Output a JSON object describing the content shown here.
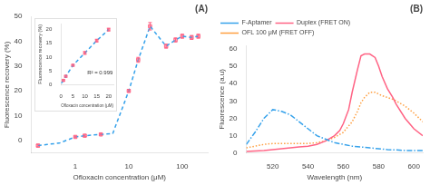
{
  "chart_data": [
    {
      "type": "line",
      "title": "(A)",
      "xlabel": "Ofloxacin concentration (μM)",
      "ylabel": "Fluorescence recovery (%)",
      "log": "x",
      "xlim": [
        0.15,
        300
      ],
      "xticks": [
        1,
        10,
        100
      ],
      "ylim": [
        -5,
        50
      ],
      "yticks": [
        0,
        10,
        20,
        30,
        40,
        50
      ],
      "grid": false,
      "series": [
        {
          "type": "line",
          "line_style": "dashed",
          "x": [
            0.2,
            0.3,
            0.5,
            1.0,
            1.5,
            3.0,
            5.0,
            10.0,
            15.0,
            25.0,
            50.0,
            75.0,
            100.0,
            150.0,
            200.0
          ],
          "values": [
            -2.0,
            -1.5,
            -1.0,
            1.5,
            2.0,
            2.5,
            2.8,
            20.0,
            32.5,
            46.0,
            38.0,
            40.5,
            42.0,
            41.5,
            42.0
          ]
        },
        {
          "type": "scatter",
          "marker": "square",
          "x": [
            0.2,
            1.0,
            1.5,
            3.0,
            10.0,
            15.0,
            25.0,
            50.0,
            75.0,
            100.0,
            150.0,
            200.0
          ],
          "values": [
            -2.0,
            1.5,
            2.0,
            2.5,
            20.0,
            32.5,
            46.0,
            38.0,
            40.5,
            42.0,
            41.5,
            42.0
          ],
          "error": [
            0.5,
            0.3,
            0.3,
            0.3,
            0.5,
            1.0,
            1.5,
            0.8,
            0.8,
            0.8,
            0.8,
            0.8
          ]
        }
      ]
    },
    {
      "type": "line",
      "xlabel": "Ofloxacin concentration (μM)",
      "ylabel": "Fluorescence recovery (%)",
      "annotations": [
        "R² = 0.999"
      ],
      "xlim": [
        0,
        22
      ],
      "xticks": [
        0,
        5,
        10,
        15,
        20
      ],
      "ylim": [
        0,
        22
      ],
      "yticks": [
        0,
        5,
        10,
        15,
        20
      ],
      "grid": false,
      "series": [
        {
          "type": "line",
          "line_style": "dashed",
          "x": [
            0.1,
            1.0,
            2.0,
            5.0,
            10.0,
            15.0,
            20.0
          ],
          "values": [
            0.5,
            1.5,
            3.0,
            7.0,
            11.5,
            16.0,
            20.0
          ]
        },
        {
          "type": "scatter",
          "marker": "square",
          "x": [
            1.0,
            2.0,
            5.0,
            10.0,
            15.0,
            20.0
          ],
          "values": [
            1.5,
            3.0,
            7.0,
            11.5,
            16.0,
            20.0
          ],
          "error": [
            0.3,
            0.3,
            0.3,
            0.5,
            0.5,
            0.5
          ]
        }
      ]
    },
    {
      "type": "line",
      "title": "(B)",
      "xlabel": "Wavelength (nm)",
      "ylabel": "Fluorescence (a.u)",
      "xlim": [
        505,
        605
      ],
      "xticks": [
        520,
        540,
        560,
        580,
        600
      ],
      "ylim": [
        0,
        62
      ],
      "yticks": [
        0,
        10,
        20,
        30,
        40,
        50,
        60
      ],
      "grid": false,
      "legend": "upper left",
      "series": [
        {
          "name": "F-Aptamer",
          "line_style": "dashdot",
          "x": [
            505,
            510,
            515,
            520,
            525,
            530,
            535,
            540,
            545,
            550,
            555,
            560,
            565,
            570,
            575,
            580,
            585,
            590,
            595,
            600,
            605
          ],
          "values": [
            5,
            12,
            20,
            25,
            24,
            22,
            18,
            14,
            10,
            8,
            6,
            5,
            4,
            3.5,
            3,
            2.5,
            2,
            1.8,
            1.5,
            1.5,
            1.5
          ]
        },
        {
          "name": "Duplex (FRET ON)",
          "line_style": "solid",
          "x": [
            505,
            510,
            515,
            520,
            525,
            530,
            535,
            540,
            545,
            550,
            555,
            558,
            560,
            563,
            565,
            568,
            570,
            572,
            575,
            578,
            580,
            582,
            585,
            588,
            590,
            595,
            600,
            605
          ],
          "values": [
            1,
            1.2,
            1.5,
            2,
            2.5,
            3,
            3.5,
            4,
            5,
            7,
            10,
            13,
            17,
            25,
            35,
            48,
            56,
            57,
            57,
            55,
            50,
            44,
            37,
            32,
            28,
            20,
            14,
            10
          ]
        },
        {
          "name": "OFL 100 μM (FRET OFF)",
          "line_style": "dotted",
          "x": [
            505,
            510,
            515,
            520,
            525,
            530,
            535,
            540,
            545,
            550,
            555,
            560,
            565,
            568,
            570,
            572,
            575,
            578,
            580,
            582,
            585,
            588,
            590,
            595,
            600,
            605
          ],
          "values": [
            3,
            4,
            5,
            5.5,
            5.5,
            5.5,
            5.5,
            5.5,
            6,
            7,
            9,
            12,
            18,
            24,
            29,
            32,
            35,
            35,
            34,
            33,
            32,
            31,
            30,
            27,
            23,
            18
          ]
        }
      ]
    }
  ]
}
